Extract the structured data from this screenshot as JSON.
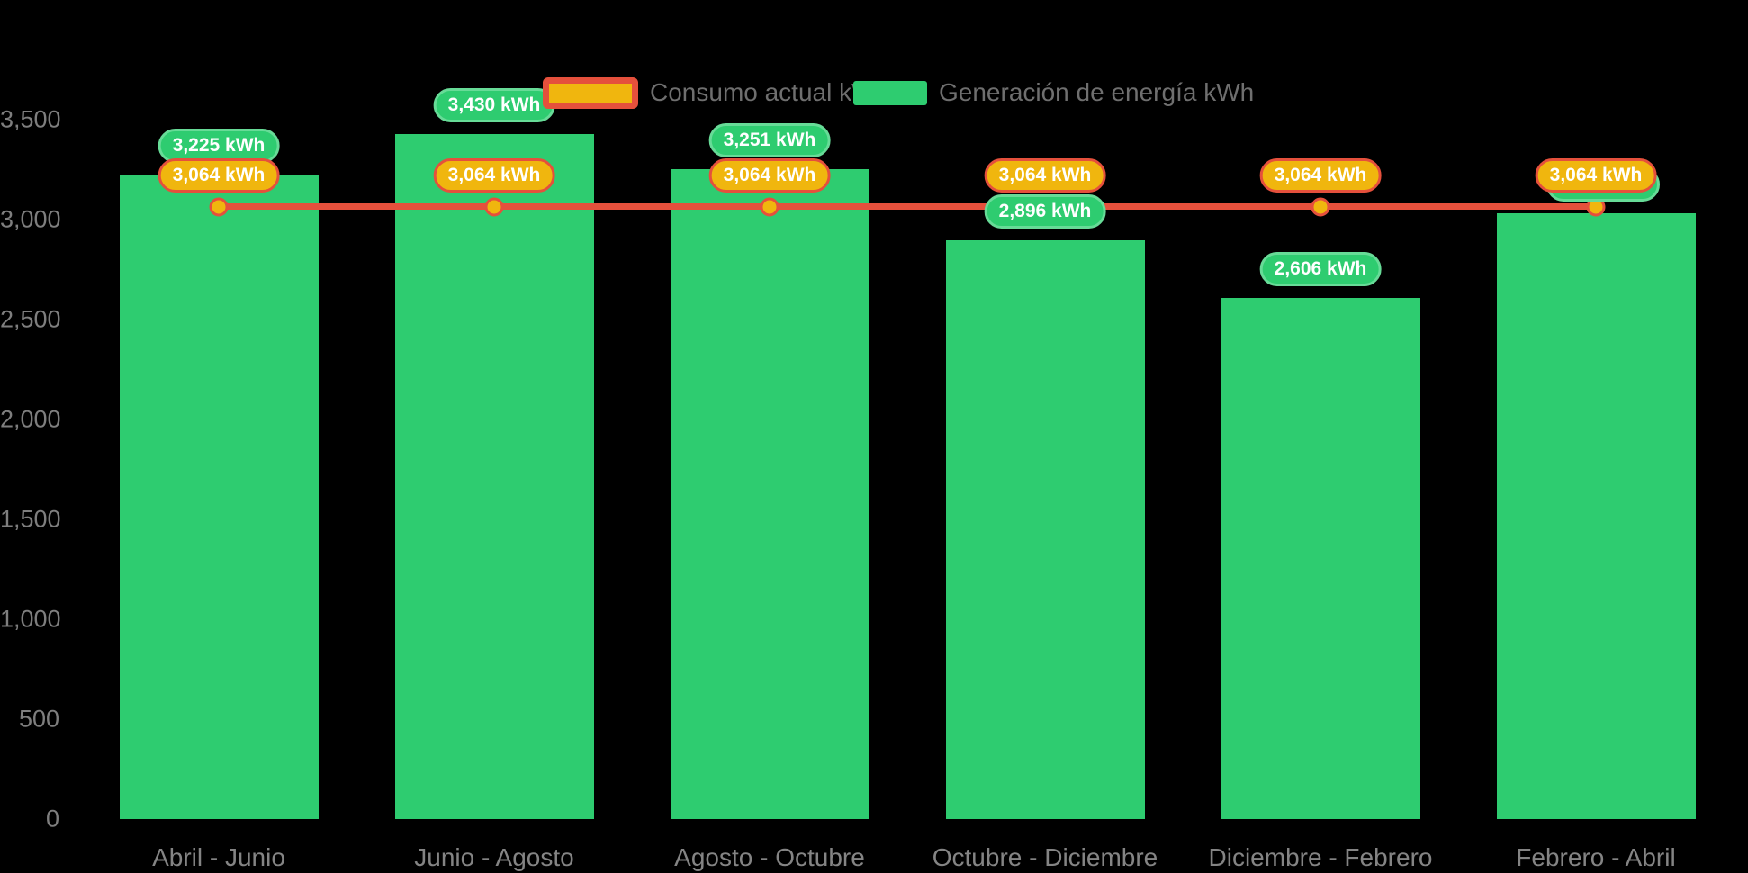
{
  "chart_data": {
    "type": "bar",
    "title": "",
    "categories": [
      "Abril - Junio",
      "Junio - Agosto",
      "Agosto - Octubre",
      "Octubre - Diciembre",
      "Diciembre - Febrero",
      "Febrero - Abril"
    ],
    "series": [
      {
        "name": "Consumo actual kWh",
        "type": "line",
        "color": "#e5503c",
        "marker_color": "#f0b60e",
        "values": [
          3064,
          3064,
          3064,
          3064,
          3064,
          3064
        ],
        "point_labels": [
          "3,064 kWh",
          "3,064 kWh",
          "3,064 kWh",
          "3,064 kWh",
          "3,064 kWh",
          "3,064 kWh"
        ]
      },
      {
        "name": "Generación de energía kWh",
        "type": "bar",
        "color": "#2ecc70",
        "values": [
          3225,
          3430,
          3251,
          2896,
          2606,
          3030
        ],
        "point_labels": [
          "3,225 kWh",
          "3,430 kWh",
          "3,251 kWh",
          "2,896 kWh",
          "2,606 kWh",
          ""
        ]
      }
    ],
    "ylim": [
      0,
      3500
    ],
    "y_ticks": [
      "0",
      "500",
      "1,000",
      "1,500",
      "2,000",
      "2,500",
      "3,000",
      "3,500"
    ],
    "grid": false,
    "legend_position": "top-center",
    "background": "#000000"
  },
  "colors": {
    "bar_green": "#2ecc70",
    "pill_green_border": "#67db97",
    "line_red": "#e5503c",
    "marker_gold": "#f0b60e",
    "axis_text": "#7e7e7e",
    "legend_text": "#6f6f6f",
    "pill_text": "#ffffff"
  }
}
